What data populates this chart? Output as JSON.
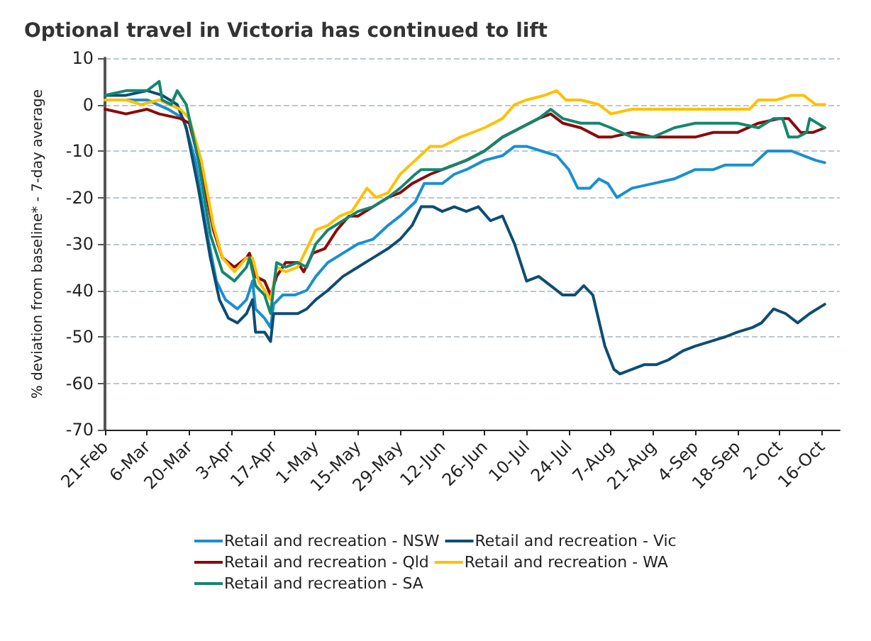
{
  "chart_data": {
    "type": "line",
    "title": "Optional travel in Victoria has continued to lift",
    "ylabel": "% deviation from baseline* - 7-day average",
    "xlim": [
      "--02-21",
      "--10-22"
    ],
    "xticks": [
      {
        "value": "--02-21",
        "label": "21-Feb"
      },
      {
        "value": "--03-06",
        "label": "6-Mar"
      },
      {
        "value": "--03-20",
        "label": "20-Mar"
      },
      {
        "value": "--04-03",
        "label": "3-Apr"
      },
      {
        "value": "--04-17",
        "label": "17-Apr"
      },
      {
        "value": "--05-01",
        "label": "1-May"
      },
      {
        "value": "--05-15",
        "label": "15-May"
      },
      {
        "value": "--05-29",
        "label": "29-May"
      },
      {
        "value": "--06-12",
        "label": "12-Jun"
      },
      {
        "value": "--06-26",
        "label": "26-Jun"
      },
      {
        "value": "--07-10",
        "label": "10-Jul"
      },
      {
        "value": "--07-24",
        "label": "24-Jul"
      },
      {
        "value": "--08-07",
        "label": "7-Aug"
      },
      {
        "value": "--08-21",
        "label": "21-Aug"
      },
      {
        "value": "--09-04",
        "label": "4-Sep"
      },
      {
        "value": "--09-18",
        "label": "18-Sep"
      },
      {
        "value": "--10-02",
        "label": "2-Oct"
      },
      {
        "value": "--10-16",
        "label": "16-Oct"
      }
    ],
    "ylim": [
      -70,
      10
    ],
    "yticks": [
      -70,
      -60,
      -50,
      -40,
      -30,
      -20,
      -10,
      0,
      10
    ],
    "grid": "y",
    "legend": "bottom",
    "line_style": "solid",
    "marker": "none",
    "series": [
      {
        "name": "Retail and recreation - NSW",
        "color": "#1a8fd1",
        "x": [
          "--02-21",
          "--02-28",
          "--03-06",
          "--03-13",
          "--03-18",
          "--03-22",
          "--03-26",
          "--03-29",
          "--04-01",
          "--04-05",
          "--04-08",
          "--04-10",
          "--04-11",
          "--04-14",
          "--04-16",
          "--04-17",
          "--04-20",
          "--04-24",
          "--04-28",
          "--05-01",
          "--05-05",
          "--05-10",
          "--05-15",
          "--05-20",
          "--05-25",
          "--05-29",
          "--06-03",
          "--06-06",
          "--06-10",
          "--06-12",
          "--06-16",
          "--06-20",
          "--06-26",
          "--07-02",
          "--07-06",
          "--07-10",
          "--07-15",
          "--07-20",
          "--07-24",
          "--07-27",
          "--07-31",
          "--08-03",
          "--08-06",
          "--08-09",
          "--08-14",
          "--08-21",
          "--08-28",
          "--09-04",
          "--09-10",
          "--09-14",
          "--09-18",
          "--09-23",
          "--09-28",
          "--10-02",
          "--10-06",
          "--10-10",
          "--10-14",
          "--10-17"
        ],
        "values": [
          1,
          1,
          1,
          -1,
          -3,
          -12,
          -28,
          -38,
          -42,
          -44,
          -42,
          -38,
          -44,
          -46,
          -48,
          -43,
          -41,
          -41,
          -40,
          -37,
          -34,
          -32,
          -30,
          -29,
          -26,
          -24,
          -21,
          -17,
          -17,
          -17,
          -15,
          -14,
          -12,
          -11,
          -9,
          -9,
          -10,
          -11,
          -14,
          -18,
          -18,
          -16,
          -17,
          -20,
          -18,
          -17,
          -16,
          -14,
          -14,
          -13,
          -13,
          -13,
          -10,
          -10,
          -10,
          -11,
          -12,
          -12.5
        ]
      },
      {
        "name": "Retail and recreation - Vic",
        "color": "#0d4d73",
        "x": [
          "--02-21",
          "--02-28",
          "--03-06",
          "--03-11",
          "--03-16",
          "--03-19",
          "--03-23",
          "--03-27",
          "--03-30",
          "--04-02",
          "--04-05",
          "--04-08",
          "--04-10",
          "--04-11",
          "--04-14",
          "--04-16",
          "--04-17",
          "--04-21",
          "--04-25",
          "--04-28",
          "--05-01",
          "--05-05",
          "--05-10",
          "--05-15",
          "--05-20",
          "--05-25",
          "--05-29",
          "--06-02",
          "--06-05",
          "--06-09",
          "--06-12",
          "--06-16",
          "--06-20",
          "--06-24",
          "--06-28",
          "--07-02",
          "--07-06",
          "--07-10",
          "--07-14",
          "--07-18",
          "--07-22",
          "--07-26",
          "--07-29",
          "--08-01",
          "--08-05",
          "--08-08",
          "--08-10",
          "--08-14",
          "--08-18",
          "--08-22",
          "--08-26",
          "--08-31",
          "--09-04",
          "--09-09",
          "--09-14",
          "--09-18",
          "--09-23",
          "--09-26",
          "--09-30",
          "--10-04",
          "--10-08",
          "--10-12",
          "--10-17"
        ],
        "values": [
          2,
          2,
          3,
          2,
          0,
          -5,
          -18,
          -33,
          -42,
          -46,
          -47,
          -45,
          -42,
          -49,
          -49,
          -51,
          -45,
          -45,
          -45,
          -44,
          -42,
          -40,
          -37,
          -35,
          -33,
          -31,
          -29,
          -26,
          -22,
          -22,
          -23,
          -22,
          -23,
          -22,
          -25,
          -24,
          -30,
          -38,
          -37,
          -39,
          -41,
          -41,
          -39,
          -41,
          -52,
          -57,
          -58,
          -57,
          -56,
          -56,
          -55,
          -53,
          -52,
          -51,
          -50,
          -49,
          -48,
          -47,
          -44,
          -45,
          -47,
          -45,
          -43
        ]
      },
      {
        "name": "Retail and recreation - Qld",
        "color": "#8b0a0a",
        "x": [
          "--02-21",
          "--02-28",
          "--03-06",
          "--03-10",
          "--03-17",
          "--03-20",
          "--03-24",
          "--03-28",
          "--03-31",
          "--04-04",
          "--04-08",
          "--04-09",
          "--04-11",
          "--04-14",
          "--04-16",
          "--04-18",
          "--04-21",
          "--04-25",
          "--04-27",
          "--04-30",
          "--05-04",
          "--05-08",
          "--05-12",
          "--05-15",
          "--05-20",
          "--05-25",
          "--05-29",
          "--06-02",
          "--06-08",
          "--06-12",
          "--06-20",
          "--06-26",
          "--07-02",
          "--07-08",
          "--07-14",
          "--07-18",
          "--07-22",
          "--07-28",
          "--08-03",
          "--08-07",
          "--08-14",
          "--08-21",
          "--08-28",
          "--09-04",
          "--09-10",
          "--09-18",
          "--09-25",
          "--10-02",
          "--10-05",
          "--10-09",
          "--10-13",
          "--10-17"
        ],
        "values": [
          -1,
          -2,
          -1,
          -2,
          -3,
          -4,
          -14,
          -27,
          -33,
          -35,
          -33,
          -32,
          -37,
          -38,
          -41,
          -37,
          -34,
          -34,
          -36,
          -32,
          -31,
          -27,
          -24,
          -24,
          -22,
          -20,
          -19,
          -17,
          -15,
          -14,
          -12,
          -10,
          -7,
          -5,
          -3,
          -2,
          -4,
          -5,
          -7,
          -7,
          -6,
          -7,
          -7,
          -7,
          -6,
          -6,
          -4,
          -3,
          -3,
          -6,
          -6,
          -5
        ]
      },
      {
        "name": "Retail and recreation - WA",
        "color": "#ffc000",
        "x": [
          "--02-21",
          "--02-28",
          "--03-04",
          "--03-10",
          "--03-17",
          "--03-20",
          "--03-24",
          "--03-28",
          "--03-31",
          "--04-04",
          "--04-08",
          "--04-10",
          "--04-12",
          "--04-14",
          "--04-16",
          "--04-18",
          "--04-21",
          "--04-25",
          "--04-28",
          "--05-01",
          "--05-05",
          "--05-09",
          "--05-13",
          "--05-18",
          "--05-21",
          "--05-25",
          "--05-29",
          "--06-03",
          "--06-08",
          "--06-12",
          "--06-18",
          "--06-22",
          "--06-26",
          "--07-02",
          "--07-06",
          "--07-10",
          "--07-16",
          "--07-20",
          "--07-23",
          "--07-28",
          "--08-03",
          "--08-07",
          "--08-14",
          "--08-21",
          "--08-28",
          "--09-04",
          "--09-11",
          "--09-18",
          "--09-22",
          "--09-25",
          "--10-01",
          "--10-06",
          "--10-10",
          "--10-14",
          "--10-17"
        ],
        "values": [
          1,
          1,
          0,
          1,
          -1,
          -3,
          -12,
          -26,
          -33,
          -36,
          -33,
          -33,
          -38,
          -40,
          -42,
          -35,
          -36,
          -35,
          -31,
          -27,
          -26,
          -24,
          -23,
          -18,
          -20,
          -19,
          -15,
          -12,
          -9,
          -9,
          -7,
          -6,
          -5,
          -3,
          0,
          1,
          2,
          3,
          1,
          1,
          0,
          -2,
          -1,
          -1,
          -1,
          -1,
          -1,
          -1,
          -1,
          1,
          1,
          2,
          2,
          0,
          0
        ]
      },
      {
        "name": "Retail and recreation - SA",
        "color": "#14876e",
        "x": [
          "--02-21",
          "--02-28",
          "--03-06",
          "--03-10",
          "--03-11",
          "--03-14",
          "--03-16",
          "--03-19",
          "--03-23",
          "--03-27",
          "--03-31",
          "--04-04",
          "--04-08",
          "--04-09",
          "--04-11",
          "--04-14",
          "--04-16",
          "--04-18",
          "--04-21",
          "--04-25",
          "--04-28",
          "--05-01",
          "--05-05",
          "--05-10",
          "--05-15",
          "--05-20",
          "--05-25",
          "--05-29",
          "--06-03",
          "--06-05",
          "--06-12",
          "--06-20",
          "--06-26",
          "--07-02",
          "--07-08",
          "--07-14",
          "--07-18",
          "--07-22",
          "--07-28",
          "--08-03",
          "--08-07",
          "--08-14",
          "--08-21",
          "--08-28",
          "--09-04",
          "--09-11",
          "--09-18",
          "--09-25",
          "--09-30",
          "--10-03",
          "--10-05",
          "--10-08",
          "--10-11",
          "--10-12",
          "--10-17"
        ],
        "values": [
          2,
          3,
          3,
          5,
          1,
          0,
          3,
          0,
          -12,
          -28,
          -36,
          -38,
          -35,
          -33,
          -39,
          -41,
          -45,
          -34,
          -35,
          -34,
          -35,
          -30,
          -27,
          -25,
          -23,
          -22,
          -20,
          -18,
          -15,
          -14,
          -14,
          -12,
          -10,
          -7,
          -5,
          -3,
          -1,
          -3,
          -4,
          -4,
          -5,
          -7,
          -7,
          -5,
          -4,
          -4,
          -4,
          -5,
          -3,
          -3,
          -7,
          -7,
          -6,
          -3,
          -5
        ]
      }
    ]
  }
}
